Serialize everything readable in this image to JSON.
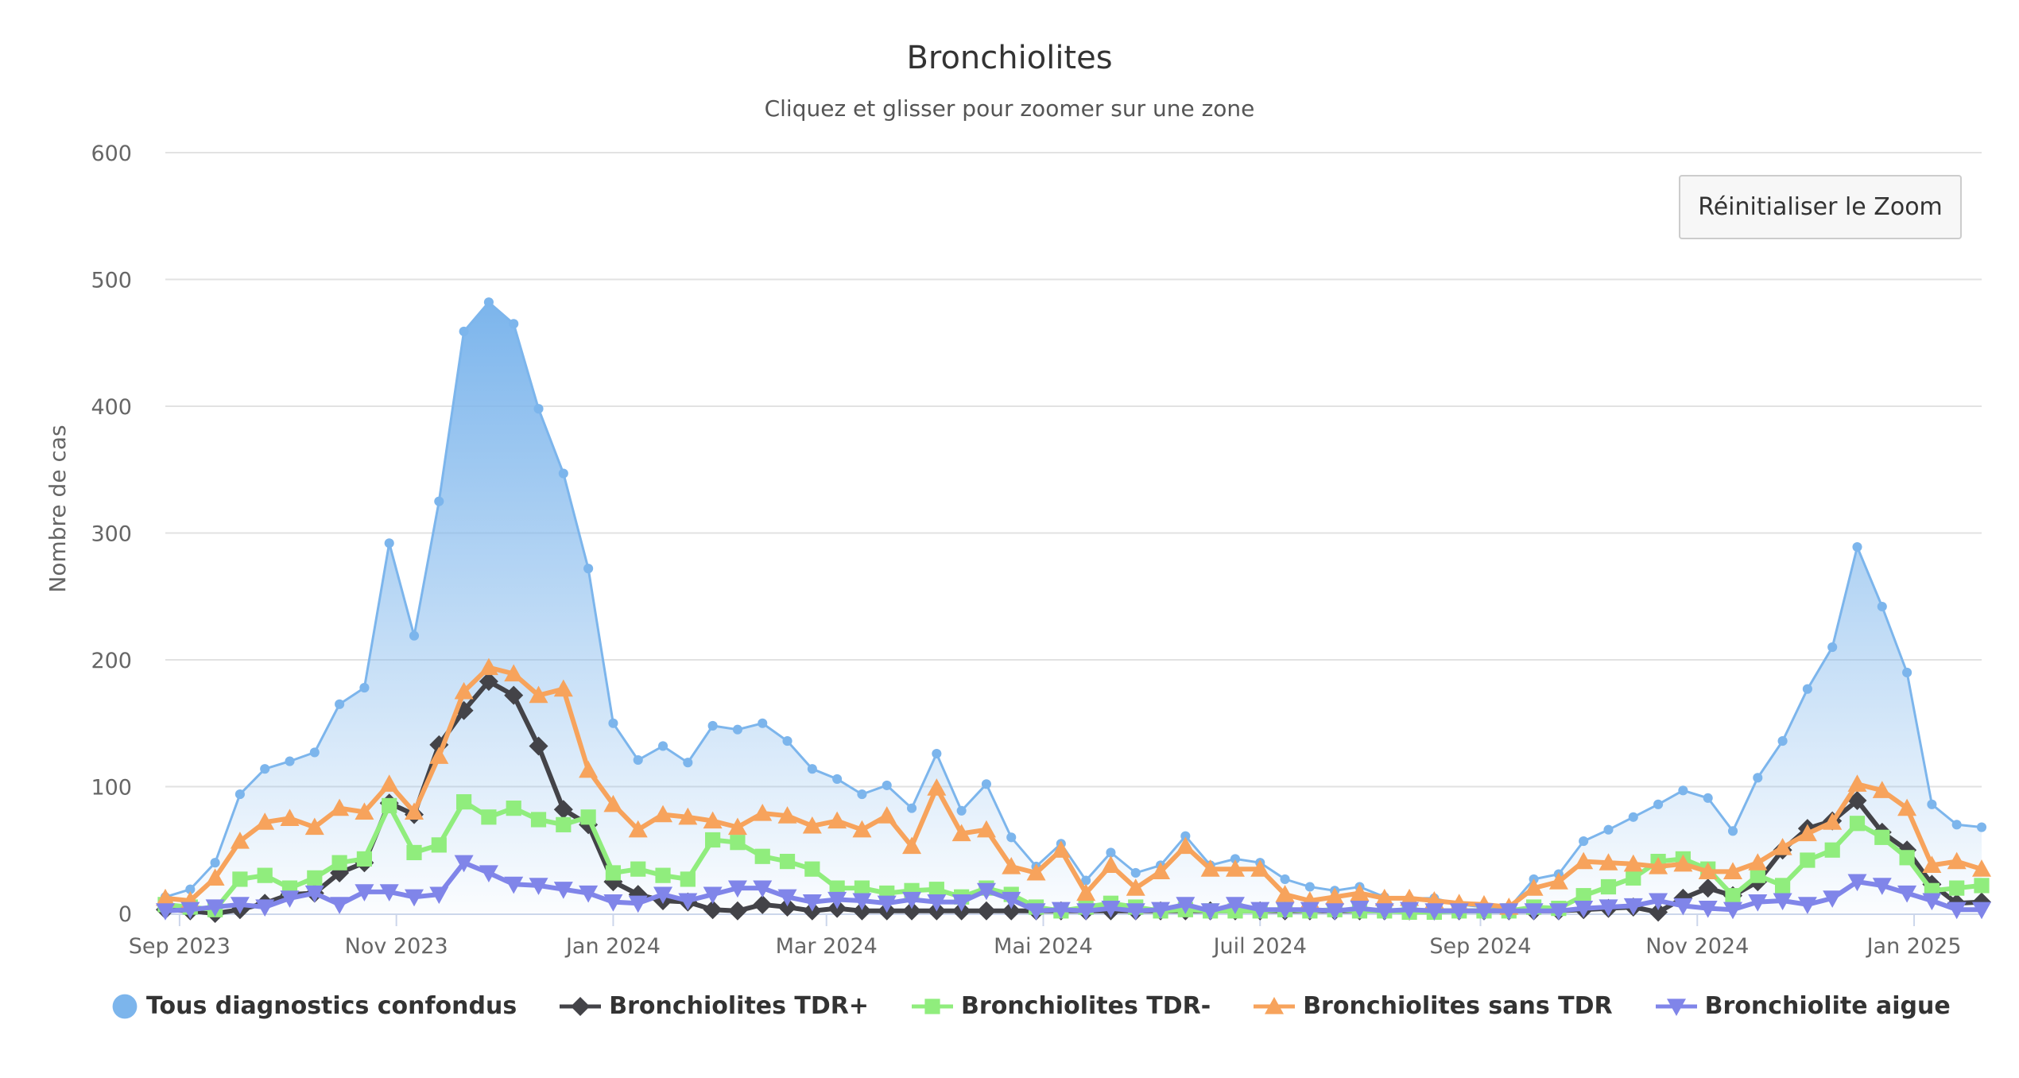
{
  "title": "Bronchiolites",
  "subtitle": "Cliquez et glisser pour zoomer sur une zone",
  "reset_zoom_label": "Réinitialiser le Zoom",
  "chart_data": {
    "type": "line",
    "title": "Bronchiolites",
    "subtitle": "Cliquez et glisser pour zoomer sur une zone",
    "ylabel": "Nombre de cas",
    "xlabel": "",
    "ylim": [
      0,
      600
    ],
    "yticks": [
      0,
      100,
      200,
      300,
      400,
      500,
      600
    ],
    "xticks": [
      {
        "date": "2023-09-01",
        "label": "Sep 2023"
      },
      {
        "date": "2023-11-01",
        "label": "Nov 2023"
      },
      {
        "date": "2024-01-01",
        "label": "Jan 2024"
      },
      {
        "date": "2024-03-01",
        "label": "Mar 2024"
      },
      {
        "date": "2024-05-01",
        "label": "Mai 2024"
      },
      {
        "date": "2024-07-01",
        "label": "Juil 2024"
      },
      {
        "date": "2024-09-01",
        "label": "Sep 2024"
      },
      {
        "date": "2024-11-01",
        "label": "Nov 2024"
      },
      {
        "date": "2025-01-01",
        "label": "Jan 2025"
      }
    ],
    "grid": true,
    "legend_position": "bottom",
    "x_start": "2023-08-28",
    "x_step_days": 7,
    "series": [
      {
        "name": "Tous diagnostics confondus",
        "type": "area",
        "color": "#7cb5ec",
        "marker": "circle",
        "values": [
          13,
          19,
          40,
          94,
          114,
          120,
          127,
          165,
          178,
          292,
          219,
          325,
          459,
          482,
          465,
          398,
          347,
          272,
          150,
          121,
          132,
          119,
          148,
          145,
          150,
          136,
          114,
          106,
          94,
          101,
          83,
          126,
          81,
          102,
          60,
          37,
          55,
          26,
          48,
          32,
          38,
          61,
          38,
          43,
          40,
          27,
          21,
          18,
          21,
          13,
          12,
          12,
          7,
          5,
          4,
          27,
          31,
          57,
          66,
          76,
          86,
          97,
          91,
          65,
          107,
          136,
          177,
          210,
          289,
          242,
          190,
          86,
          70,
          68
        ]
      },
      {
        "name": "Bronchiolites TDR+",
        "type": "line",
        "color": "#434348",
        "marker": "diamond",
        "values": [
          3,
          2,
          0,
          3,
          8,
          15,
          16,
          32,
          40,
          87,
          78,
          133,
          160,
          183,
          172,
          132,
          82,
          70,
          25,
          15,
          10,
          9,
          3,
          2,
          7,
          5,
          2,
          4,
          2,
          2,
          2,
          2,
          2,
          2,
          2,
          2,
          2,
          2,
          2,
          2,
          2,
          2,
          2,
          2,
          2,
          2,
          2,
          2,
          2,
          2,
          2,
          2,
          2,
          2,
          2,
          2,
          2,
          3,
          4,
          5,
          1,
          12,
          20,
          14,
          25,
          50,
          67,
          73,
          89,
          64,
          50,
          23,
          8,
          9
        ]
      },
      {
        "name": "Bronchiolites TDR-",
        "type": "line",
        "color": "#90ed7d",
        "marker": "square",
        "values": [
          7,
          5,
          3,
          27,
          30,
          20,
          28,
          40,
          43,
          85,
          48,
          54,
          88,
          76,
          83,
          74,
          70,
          76,
          32,
          35,
          30,
          27,
          58,
          56,
          45,
          41,
          35,
          20,
          20,
          16,
          18,
          19,
          13,
          20,
          15,
          5,
          2,
          5,
          8,
          5,
          2,
          3,
          2,
          2,
          2,
          3,
          2,
          3,
          2,
          2,
          1,
          1,
          2,
          2,
          2,
          5,
          4,
          14,
          21,
          28,
          41,
          43,
          35,
          14,
          30,
          22,
          42,
          50,
          71,
          60,
          44,
          18,
          20,
          22
        ]
      },
      {
        "name": "Bronchiolites sans TDR",
        "type": "line",
        "color": "#f7a35c",
        "marker": "triangle",
        "values": [
          12,
          10,
          28,
          57,
          72,
          75,
          68,
          83,
          80,
          102,
          80,
          124,
          175,
          194,
          189,
          172,
          177,
          113,
          86,
          66,
          78,
          76,
          73,
          68,
          79,
          77,
          69,
          73,
          66,
          77,
          53,
          99,
          63,
          66,
          37,
          32,
          50,
          16,
          38,
          20,
          33,
          53,
          35,
          35,
          35,
          15,
          10,
          13,
          16,
          12,
          12,
          10,
          8,
          7,
          5,
          20,
          25,
          41,
          40,
          39,
          37,
          39,
          33,
          33,
          40,
          52,
          63,
          72,
          102,
          97,
          83,
          38,
          41,
          35
        ]
      },
      {
        "name": "Bronchiolite aigue",
        "type": "line",
        "color": "#8085e9",
        "marker": "triangle-down",
        "values": [
          2,
          3,
          5,
          7,
          5,
          12,
          16,
          7,
          17,
          17,
          13,
          15,
          40,
          32,
          23,
          22,
          19,
          16,
          9,
          8,
          15,
          10,
          15,
          20,
          20,
          13,
          9,
          11,
          10,
          8,
          11,
          9,
          9,
          18,
          11,
          2,
          3,
          2,
          4,
          2,
          3,
          7,
          2,
          7,
          3,
          3,
          3,
          2,
          4,
          2,
          3,
          2,
          2,
          2,
          2,
          2,
          2,
          4,
          5,
          6,
          10,
          6,
          4,
          3,
          9,
          10,
          7,
          12,
          25,
          22,
          16,
          10,
          3,
          3
        ]
      }
    ]
  }
}
